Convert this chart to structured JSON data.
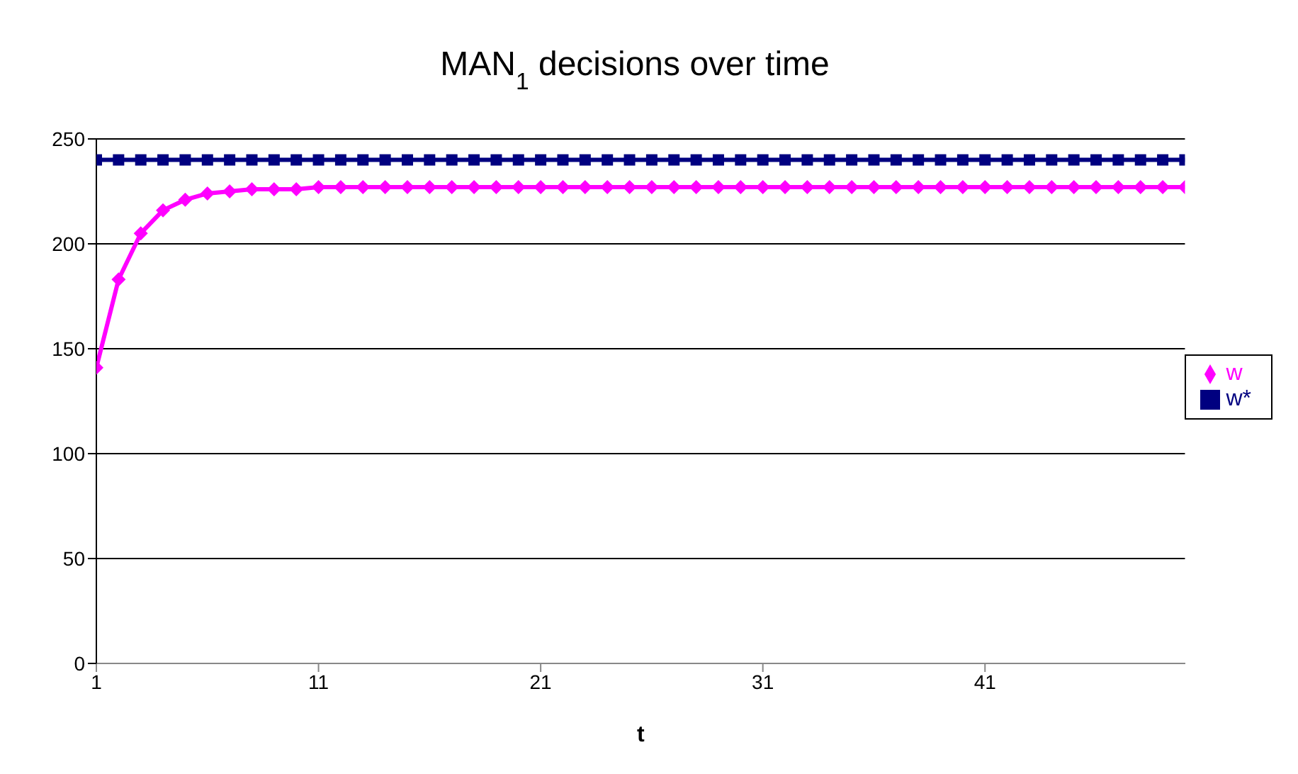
{
  "chart_data": {
    "type": "line",
    "title": "MAN$_{1}$ decisions over time",
    "xlabel": "t",
    "x": [
      1,
      2,
      3,
      4,
      5,
      6,
      7,
      8,
      9,
      10,
      11,
      12,
      13,
      14,
      15,
      16,
      17,
      18,
      19,
      20,
      21,
      22,
      23,
      24,
      25,
      26,
      27,
      28,
      29,
      30,
      31,
      32,
      33,
      34,
      35,
      36,
      37,
      38,
      39,
      40,
      41,
      42,
      43,
      44,
      45,
      46,
      47,
      48,
      49,
      50
    ],
    "series": [
      {
        "name": "w",
        "color": "#ff00ff",
        "marker": "diamond",
        "values": [
          141,
          183,
          205,
          216,
          221,
          224,
          225,
          226,
          226,
          226,
          227,
          227,
          227,
          227,
          227,
          227,
          227,
          227,
          227,
          227,
          227,
          227,
          227,
          227,
          227,
          227,
          227,
          227,
          227,
          227,
          227,
          227,
          227,
          227,
          227,
          227,
          227,
          227,
          227,
          227,
          227,
          227,
          227,
          227,
          227,
          227,
          227,
          227,
          227,
          227
        ]
      },
      {
        "name": "w*",
        "color": "#000080",
        "marker": "square",
        "values": [
          240,
          240,
          240,
          240,
          240,
          240,
          240,
          240,
          240,
          240,
          240,
          240,
          240,
          240,
          240,
          240,
          240,
          240,
          240,
          240,
          240,
          240,
          240,
          240,
          240,
          240,
          240,
          240,
          240,
          240,
          240,
          240,
          240,
          240,
          240,
          240,
          240,
          240,
          240,
          240,
          240,
          240,
          240,
          240,
          240,
          240,
          240,
          240,
          240,
          240
        ]
      }
    ],
    "xlim": [
      1,
      50
    ],
    "xticks": [
      1,
      11,
      21,
      31,
      41
    ],
    "ylim": [
      0,
      250
    ],
    "yticks": [
      0,
      50,
      100,
      150,
      200,
      250
    ],
    "grid": "y",
    "legend": "right",
    "line_style": "solid"
  }
}
